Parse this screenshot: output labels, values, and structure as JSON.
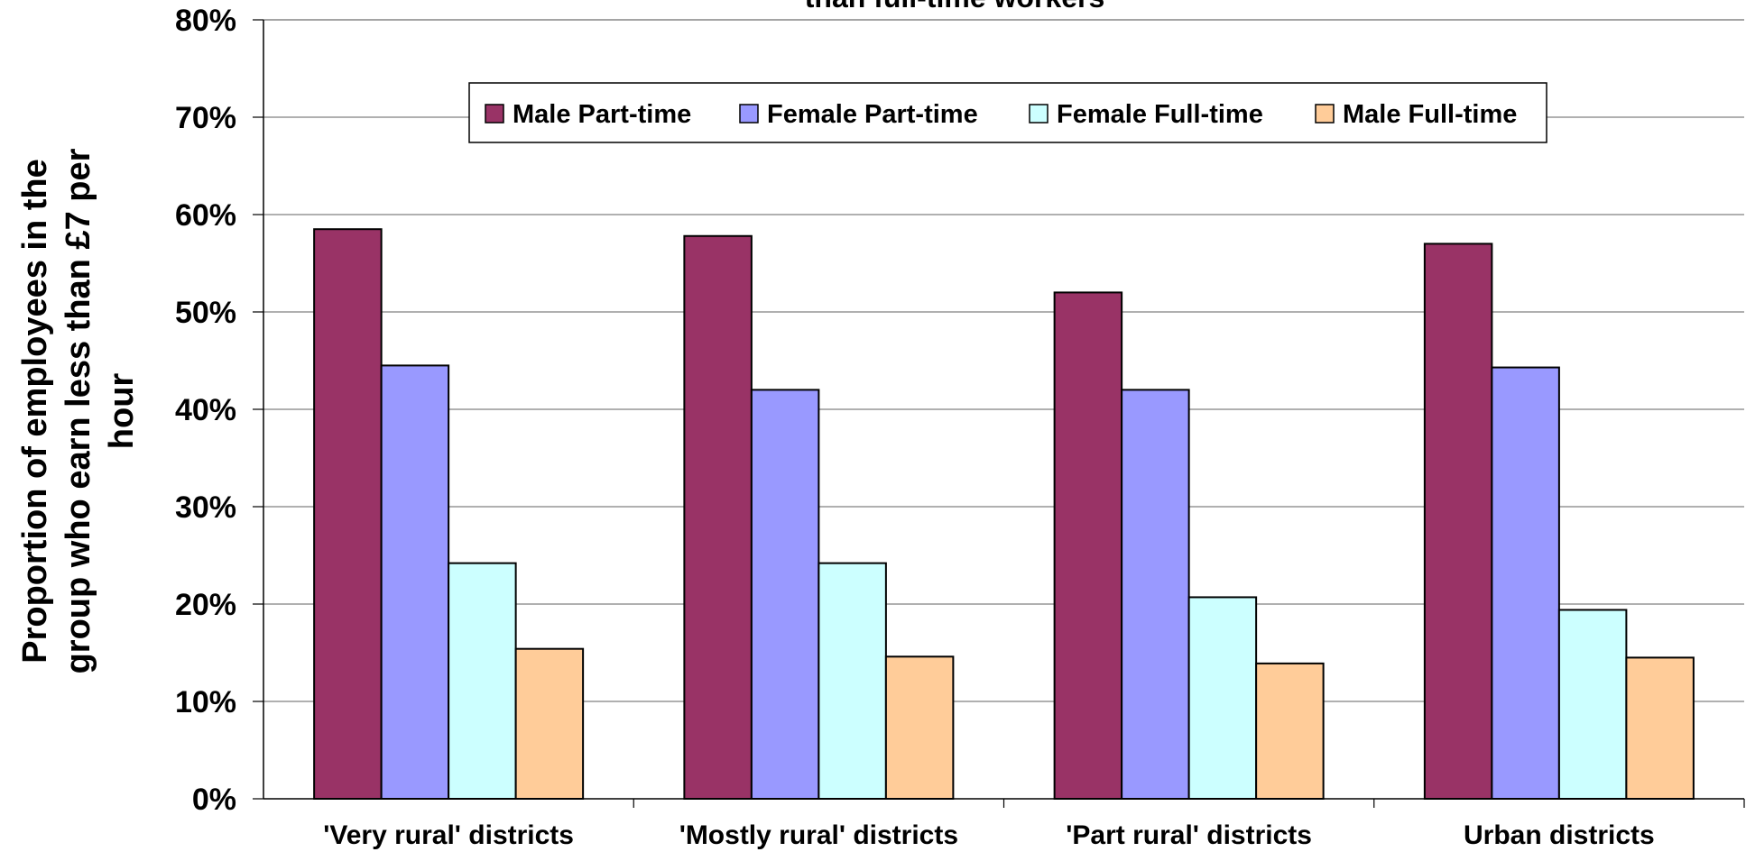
{
  "chart_data": {
    "type": "bar",
    "title": "than full-time workers",
    "ylabel_lines": [
      "Proportion of employees in the",
      "group who earn less than £7 per",
      "hour"
    ],
    "xlabel": "",
    "categories": [
      "'Very rural' districts",
      "'Mostly rural' districts",
      "'Part rural' districts",
      "Urban districts"
    ],
    "series": [
      {
        "name": "Male Part-time",
        "color": "#993366",
        "values": [
          58.5,
          57.8,
          52.0,
          57.0
        ]
      },
      {
        "name": "Female Part-time",
        "color": "#9999FF",
        "values": [
          44.5,
          42.0,
          42.0,
          44.3
        ]
      },
      {
        "name": "Female Full-time",
        "color": "#CCFFFF",
        "values": [
          24.2,
          24.2,
          20.7,
          19.4
        ]
      },
      {
        "name": "Male Full-time",
        "color": "#FFCC99",
        "values": [
          15.4,
          14.6,
          13.9,
          14.5
        ]
      }
    ],
    "ylim": [
      0,
      80
    ],
    "yticks": [
      0,
      10,
      20,
      30,
      40,
      50,
      60,
      70,
      80
    ],
    "ytick_labels": [
      "0%",
      "10%",
      "20%",
      "30%",
      "40%",
      "50%",
      "60%",
      "70%",
      "80%"
    ],
    "grid": true,
    "legend_position": "top-center"
  }
}
